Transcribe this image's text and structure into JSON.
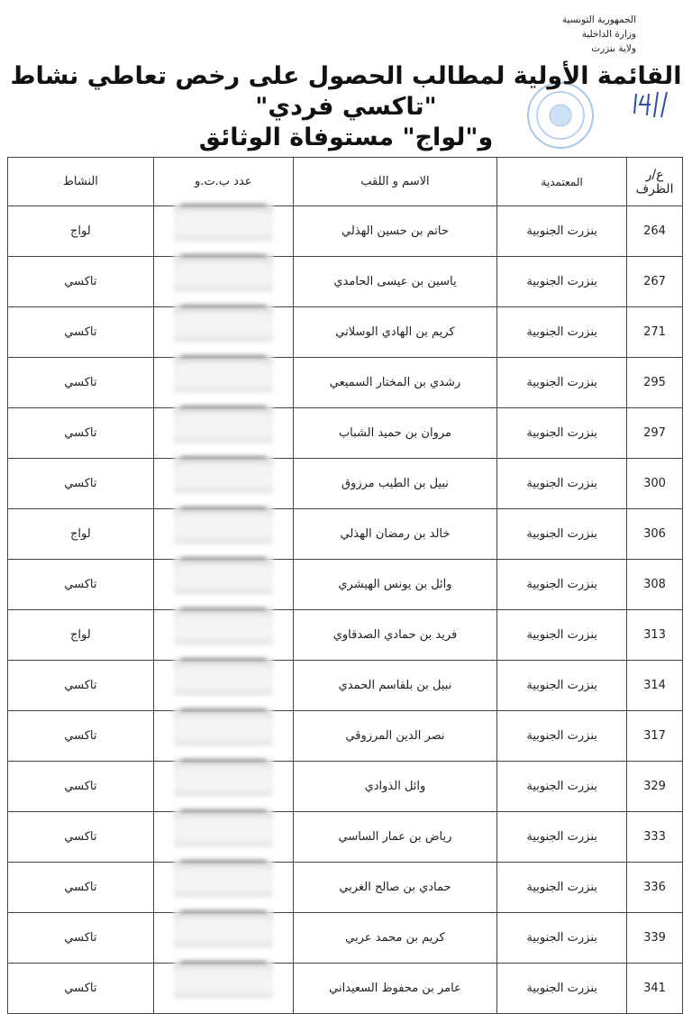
{
  "header": {
    "lines": [
      "الجمهورية التونسية",
      "وزارة الداخلية",
      "ولاية بنزرت"
    ]
  },
  "title": {
    "line1": "القائمة الأولية لمطالب الحصول على رخص تعاطي نشاط \"تاكسي فردي\"",
    "line2": "و\"لواج\" مستوفاة الوثائق"
  },
  "handwritten_note": "4/1",
  "table": {
    "columns": [
      "ع/ر الظرف",
      "المعتمدية",
      "الاسم و اللقب",
      "عدد ب.ت.و",
      "النشاط"
    ],
    "rows": [
      {
        "num": "264",
        "delegation": "بنزرت الجنوبية",
        "name": "حاتم بن حسين الهذلي",
        "activity": "لواج"
      },
      {
        "num": "267",
        "delegation": "بنزرت الجنوبية",
        "name": "ياسين بن عيسى الحامدي",
        "activity": "تاكسي"
      },
      {
        "num": "271",
        "delegation": "بنزرت الجنوبية",
        "name": "كريم بن الهادي الوسلاتي",
        "activity": "تاكسي"
      },
      {
        "num": "295",
        "delegation": "بنزرت الجنوبية",
        "name": "رشدي بن المختار السميعي",
        "activity": "تاكسي"
      },
      {
        "num": "297",
        "delegation": "بنزرت الجنوبية",
        "name": "مروان بن حميد الشباب",
        "activity": "تاكسي"
      },
      {
        "num": "300",
        "delegation": "بنزرت الجنوبية",
        "name": "نبيل بن الطيب مرزوق",
        "activity": "تاكسي"
      },
      {
        "num": "306",
        "delegation": "بنزرت الجنوبية",
        "name": "خالد بن رمضان الهذلي",
        "activity": "لواج"
      },
      {
        "num": "308",
        "delegation": "بنزرت الجنوبية",
        "name": "وائل بن يونس الهيشري",
        "activity": "تاكسي"
      },
      {
        "num": "313",
        "delegation": "بنزرت الجنوبية",
        "name": "فريد بن حمادي الصدقاوي",
        "activity": "لواج"
      },
      {
        "num": "314",
        "delegation": "بنزرت الجنوبية",
        "name": "نبيل بن بلقاسم الحمدي",
        "activity": "تاكسي"
      },
      {
        "num": "317",
        "delegation": "بنزرت الجنوبية",
        "name": "نصر الدين المرزوقي",
        "activity": "تاكسي"
      },
      {
        "num": "329",
        "delegation": "بنزرت الجنوبية",
        "name": "وائل الذوادي",
        "activity": "تاكسي"
      },
      {
        "num": "333",
        "delegation": "بنزرت الجنوبية",
        "name": "رياض بن عمار الساسي",
        "activity": "تاكسي"
      },
      {
        "num": "336",
        "delegation": "بنزرت الجنوبية",
        "name": "حمادي بن صالح الغربي",
        "activity": "تاكسي"
      },
      {
        "num": "339",
        "delegation": "بنزرت الجنوبية",
        "name": "كريم بن محمد عربي",
        "activity": "تاكسي"
      },
      {
        "num": "341",
        "delegation": "بنزرت الجنوبية",
        "name": "عامر بن محفوظ السعيداني",
        "activity": "تاكسي"
      }
    ]
  },
  "colors": {
    "stamp": "#8fb4e0",
    "ink": "#2a4fa8"
  }
}
